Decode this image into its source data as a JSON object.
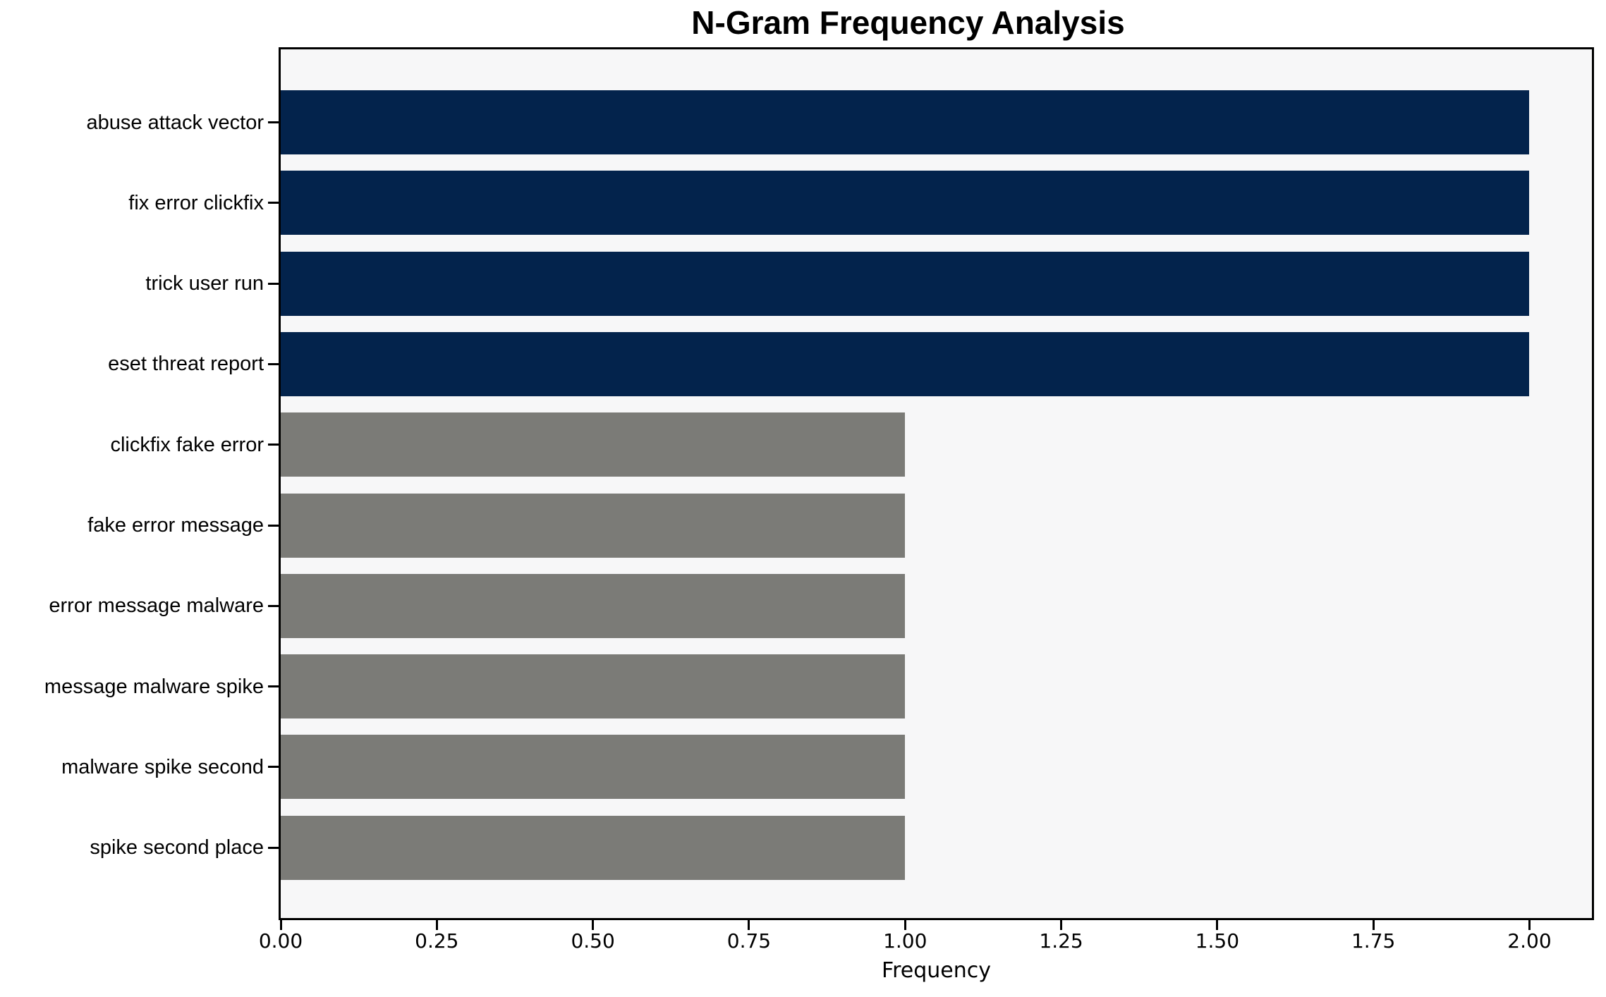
{
  "title": "N-Gram Frequency Analysis",
  "chart_data": {
    "type": "bar",
    "orientation": "horizontal",
    "title": "N-Gram Frequency Analysis",
    "xlabel": "Frequency",
    "ylabel": "",
    "categories": [
      "abuse attack vector",
      "fix error clickfix",
      "trick user run",
      "eset threat report",
      "clickfix fake error",
      "fake error message",
      "error message malware",
      "message malware spike",
      "malware spike second",
      "spike second place"
    ],
    "values": [
      2,
      2,
      2,
      2,
      1,
      1,
      1,
      1,
      1,
      1
    ],
    "bar_colors": [
      "#03234c",
      "#03234c",
      "#03234c",
      "#03234c",
      "#7b7b77",
      "#7b7b77",
      "#7b7b77",
      "#7b7b77",
      "#7b7b77",
      "#7b7b77"
    ],
    "xlim": [
      0,
      2.1
    ],
    "x_tick_values": [
      0,
      0.25,
      0.5,
      0.75,
      1.0,
      1.25,
      1.5,
      1.75,
      2.0
    ],
    "x_tick_labels": [
      "0.00",
      "0.25",
      "0.50",
      "0.75",
      "1.00",
      "1.25",
      "1.50",
      "1.75",
      "2.00"
    ],
    "grid": false,
    "legend": null,
    "plot_background": "#f7f7f8",
    "spine_color": "#000000",
    "figure_background": "#ffffff"
  }
}
